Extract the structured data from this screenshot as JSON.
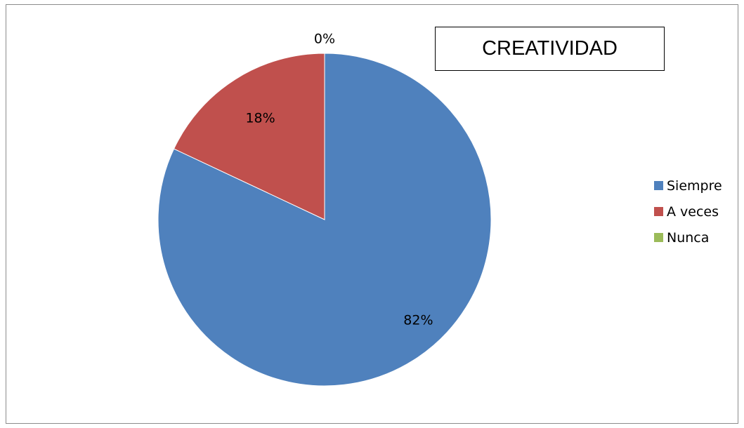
{
  "chart_data": {
    "type": "pie",
    "title": "CREATIVIDAD",
    "categories": [
      "Siempre",
      "A veces",
      "Nunca"
    ],
    "values": [
      82,
      18,
      0
    ],
    "data_labels": [
      "82%",
      "18%",
      "0%"
    ],
    "colors": [
      "#4F81BD",
      "#C0504D",
      "#9BBB59"
    ],
    "legend_position": "right"
  }
}
